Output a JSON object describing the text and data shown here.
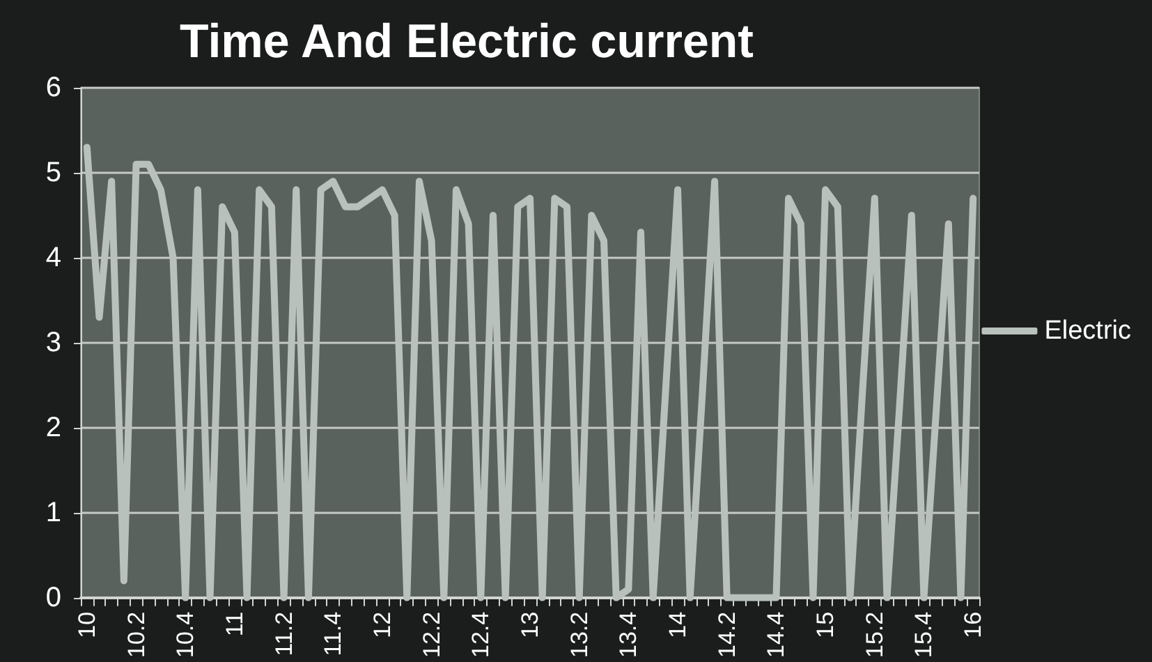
{
  "chart_data": {
    "type": "line",
    "title": "Time And Electric current",
    "categories": [
      "10",
      null,
      null,
      null,
      "10.2",
      null,
      null,
      null,
      "10.4",
      null,
      null,
      null,
      "11",
      null,
      null,
      null,
      "11.2",
      null,
      null,
      null,
      "11.4",
      null,
      null,
      null,
      "12",
      null,
      null,
      null,
      "12.2",
      null,
      null,
      null,
      "12.4",
      null,
      null,
      null,
      "13",
      null,
      null,
      null,
      "13.2",
      null,
      null,
      null,
      "13.4",
      null,
      null,
      null,
      "14",
      null,
      null,
      null,
      "14.2",
      null,
      null,
      null,
      "14.4",
      null,
      null,
      null,
      "15",
      null,
      null,
      null,
      "15.2",
      null,
      null,
      null,
      "15.4",
      null,
      null,
      null,
      "16"
    ],
    "series": [
      {
        "name": "Electric",
        "color": "#b9c1bc",
        "values": [
          5.3,
          3.3,
          4.9,
          0.2,
          5.1,
          5.1,
          4.8,
          4.0,
          0,
          4.8,
          0,
          4.6,
          4.3,
          0,
          4.8,
          4.6,
          0,
          4.8,
          0,
          4.8,
          4.9,
          4.6,
          4.6,
          4.7,
          4.8,
          4.5,
          0,
          4.9,
          4.2,
          0,
          4.8,
          4.4,
          0,
          4.5,
          0,
          4.6,
          4.7,
          0,
          4.7,
          4.6,
          0,
          4.5,
          4.2,
          0,
          0.1,
          4.3,
          0,
          2.4,
          4.8,
          0,
          2.4,
          4.9,
          0,
          0,
          0,
          0,
          0,
          4.7,
          4.4,
          0,
          4.8,
          4.6,
          0,
          2.4,
          4.7,
          0,
          2.2,
          4.5,
          0,
          2.2,
          4.4,
          0,
          4.7
        ]
      }
    ],
    "ylim": [
      0,
      6
    ],
    "yticks": [
      0,
      1,
      2,
      3,
      4,
      5,
      6
    ],
    "grid": "y",
    "legend": "right"
  }
}
